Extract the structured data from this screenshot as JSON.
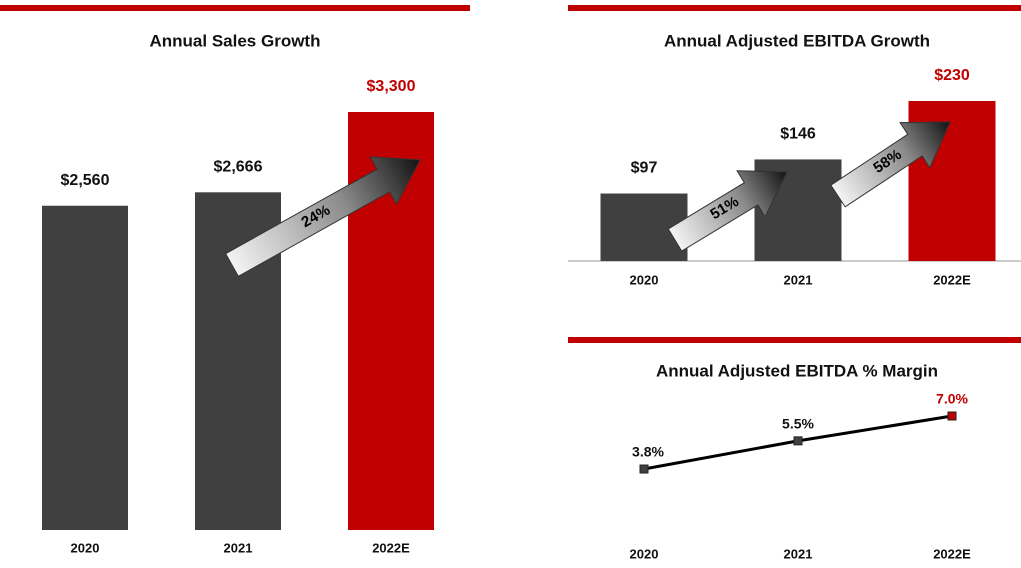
{
  "chart_data": [
    {
      "type": "bar",
      "title": "Annual Sales Growth",
      "categories": [
        "2020",
        "2021",
        "2022E"
      ],
      "values": [
        2560,
        2666,
        3300
      ],
      "value_labels": [
        "$2,560",
        "$2,666",
        "$3,300"
      ],
      "colors": [
        "#404040",
        "#404040",
        "#c00000"
      ],
      "annotations": [
        "24%"
      ]
    },
    {
      "type": "bar",
      "title": "Annual Adjusted EBITDA Growth",
      "categories": [
        "2020",
        "2021",
        "2022E"
      ],
      "values": [
        97,
        146,
        230
      ],
      "value_labels": [
        "$97",
        "$146",
        "$230"
      ],
      "colors": [
        "#404040",
        "#404040",
        "#c00000"
      ],
      "annotations": [
        "51%",
        "58%"
      ]
    },
    {
      "type": "line",
      "title": "Annual Adjusted EBITDA % Margin",
      "categories": [
        "2020",
        "2021",
        "2022E"
      ],
      "values": [
        3.8,
        5.5,
        7.0
      ],
      "value_labels": [
        "3.8%",
        "5.5%",
        "7.0%"
      ],
      "color": "#000000",
      "colors": [
        "#404040",
        "#404040",
        "#c00000"
      ]
    }
  ]
}
